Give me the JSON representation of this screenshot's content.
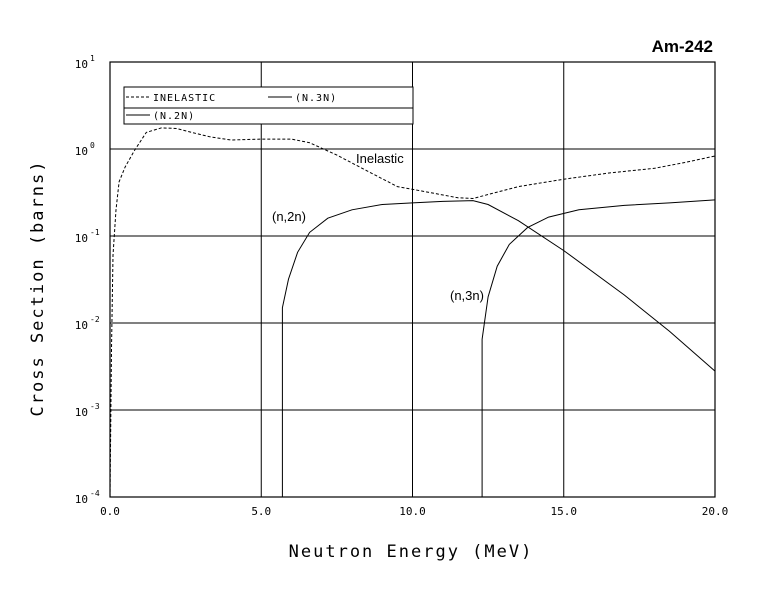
{
  "chart_data": {
    "type": "line",
    "title": "Am-242",
    "xlabel": "Neutron Energy (MeV)",
    "ylabel": "Cross Section (barns)",
    "xlim": [
      0,
      20
    ],
    "ylim": [
      0.0001,
      10
    ],
    "y_scale": "log",
    "x_ticks": [
      0,
      5,
      10,
      15,
      20
    ],
    "x_tick_labels": [
      "0.0",
      "5.0",
      "10.0",
      "15.0",
      "20.0"
    ],
    "y_ticks": [
      {
        "base": "10",
        "exp": "1"
      },
      {
        "base": "10",
        "exp": "0"
      },
      {
        "base": "10",
        "exp": "-1"
      },
      {
        "base": "10",
        "exp": "-2"
      },
      {
        "base": "10",
        "exp": "-3"
      },
      {
        "base": "10",
        "exp": "-4"
      }
    ],
    "grid": true,
    "legend_position": "top-left",
    "legend": [
      "INELASTIC",
      "(N.3N)",
      "(N.2N)"
    ],
    "series": [
      {
        "name": "INELASTIC",
        "annotation": "Inelastic",
        "style": "dashed",
        "points": [
          [
            0.0,
            0.0001
          ],
          [
            0.05,
            0.005
          ],
          [
            0.1,
            0.06
          ],
          [
            0.2,
            0.2
          ],
          [
            0.3,
            0.42
          ],
          [
            0.5,
            0.62
          ],
          [
            0.8,
            0.95
          ],
          [
            1.2,
            1.55
          ],
          [
            1.7,
            1.75
          ],
          [
            2.2,
            1.72
          ],
          [
            2.7,
            1.55
          ],
          [
            3.3,
            1.38
          ],
          [
            4.0,
            1.27
          ],
          [
            5.0,
            1.3
          ],
          [
            6.0,
            1.3
          ],
          [
            6.6,
            1.18
          ],
          [
            7.5,
            0.85
          ],
          [
            8.5,
            0.56
          ],
          [
            9.5,
            0.37
          ],
          [
            10.5,
            0.32
          ],
          [
            11.5,
            0.275
          ],
          [
            12.0,
            0.27
          ],
          [
            12.5,
            0.3
          ],
          [
            13.5,
            0.37
          ],
          [
            15.0,
            0.45
          ],
          [
            16.5,
            0.53
          ],
          [
            18.0,
            0.6
          ],
          [
            19.0,
            0.7
          ],
          [
            20.0,
            0.83
          ]
        ]
      },
      {
        "name": "(N.3N)",
        "annotation": "(n,3n)",
        "style": "solid",
        "points": [
          [
            12.3,
            0.0001
          ],
          [
            12.3,
            0.0065
          ],
          [
            12.5,
            0.02
          ],
          [
            12.8,
            0.045
          ],
          [
            13.2,
            0.08
          ],
          [
            13.8,
            0.125
          ],
          [
            14.5,
            0.165
          ],
          [
            15.5,
            0.2
          ],
          [
            17.0,
            0.225
          ],
          [
            18.5,
            0.24
          ],
          [
            20.0,
            0.26
          ]
        ]
      },
      {
        "name": "(N.2N)",
        "annotation": "(n,2n)",
        "style": "solid",
        "points": [
          [
            5.7,
            0.0001
          ],
          [
            5.7,
            0.015
          ],
          [
            5.9,
            0.032
          ],
          [
            6.2,
            0.065
          ],
          [
            6.6,
            0.11
          ],
          [
            7.2,
            0.16
          ],
          [
            8.0,
            0.2
          ],
          [
            9.0,
            0.23
          ],
          [
            10.0,
            0.24
          ],
          [
            11.0,
            0.25
          ],
          [
            12.0,
            0.255
          ],
          [
            12.5,
            0.23
          ],
          [
            13.5,
            0.15
          ],
          [
            15.0,
            0.068
          ],
          [
            17.0,
            0.021
          ],
          [
            18.5,
            0.008
          ],
          [
            20.0,
            0.0028
          ]
        ]
      }
    ]
  }
}
